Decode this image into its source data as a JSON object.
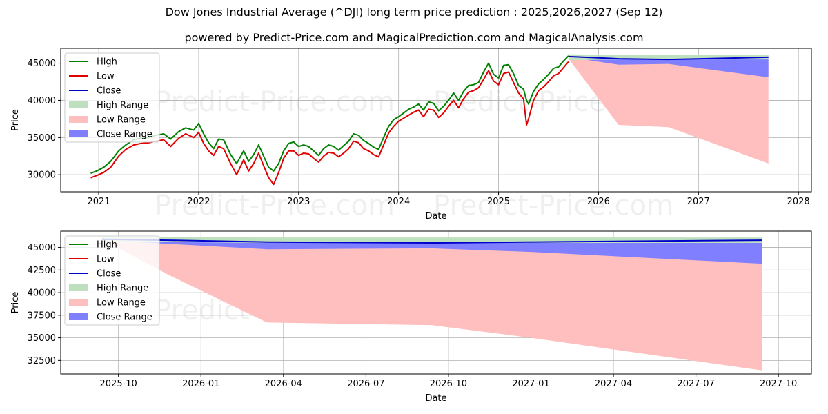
{
  "header": {
    "title": "Dow Jones Industrial Average (^DJI) long term price prediction : 2025,2026,2027 (Sep 12)",
    "subtitle": "powered by Predict-Price.com and MagicalPrediction.com and MagicalAnalysis.com"
  },
  "watermark": "Predict-Price.com",
  "colors": {
    "high": "#008000",
    "low": "#e00000",
    "close": "#0000cc",
    "high_range": "#bfe0bf",
    "low_range": "#ffbfbf",
    "close_range": "#7f7fff",
    "grid": "#b0b0b0"
  },
  "legend": [
    {
      "label": "High",
      "kind": "line",
      "color_key": "high"
    },
    {
      "label": "Low",
      "kind": "line",
      "color_key": "low"
    },
    {
      "label": "Close",
      "kind": "line",
      "color_key": "close"
    },
    {
      "label": "High Range",
      "kind": "patch",
      "color_key": "high_range"
    },
    {
      "label": "Low Range",
      "kind": "patch",
      "color_key": "low_range"
    },
    {
      "label": "Close Range",
      "kind": "patch",
      "color_key": "close_range"
    }
  ],
  "chart_data": [
    {
      "type": "line",
      "name": "top",
      "xlabel": "Date",
      "ylabel": "Price",
      "xlim": [
        2020.62,
        2028.13
      ],
      "ylim": [
        27700,
        47000
      ],
      "xticks": [
        2021,
        2022,
        2023,
        2024,
        2025,
        2026,
        2027,
        2028
      ],
      "xtick_labels": [
        "2021",
        "2022",
        "2023",
        "2024",
        "2025",
        "2026",
        "2027",
        "2028"
      ],
      "yticks": [
        30000,
        35000,
        40000,
        45000
      ],
      "ytick_labels": [
        "30000",
        "35000",
        "40000",
        "45000"
      ],
      "grid": true,
      "legend_position": "upper-left",
      "history": {
        "x": [
          2020.92,
          2020.98,
          2021.05,
          2021.12,
          2021.2,
          2021.27,
          2021.35,
          2021.42,
          2021.5,
          2021.57,
          2021.65,
          2021.72,
          2021.8,
          2021.87,
          2021.95,
          2022.0,
          2022.05,
          2022.1,
          2022.15,
          2022.2,
          2022.25,
          2022.32,
          2022.38,
          2022.45,
          2022.5,
          2022.55,
          2022.6,
          2022.65,
          2022.7,
          2022.75,
          2022.8,
          2022.85,
          2022.9,
          2022.95,
          2023.0,
          2023.05,
          2023.1,
          2023.15,
          2023.2,
          2023.25,
          2023.3,
          2023.35,
          2023.4,
          2023.45,
          2023.5,
          2023.55,
          2023.6,
          2023.65,
          2023.7,
          2023.75,
          2023.8,
          2023.85,
          2023.9,
          2023.95,
          2024.0,
          2024.05,
          2024.1,
          2024.15,
          2024.2,
          2024.25,
          2024.3,
          2024.35,
          2024.4,
          2024.45,
          2024.5,
          2024.55,
          2024.6,
          2024.65,
          2024.7,
          2024.75,
          2024.8,
          2024.85,
          2024.9,
          2024.95,
          2025.0,
          2025.05,
          2025.1,
          2025.15,
          2025.2,
          2025.25,
          2025.28,
          2025.3,
          2025.35,
          2025.4,
          2025.45,
          2025.5,
          2025.55,
          2025.6,
          2025.65,
          2025.7
        ],
        "high": [
          30200,
          30500,
          31000,
          31800,
          33200,
          34000,
          34700,
          34900,
          35000,
          35300,
          35500,
          34800,
          35800,
          36300,
          36000,
          36900,
          35500,
          34300,
          33500,
          34800,
          34700,
          32700,
          31500,
          33200,
          31800,
          32700,
          34000,
          32500,
          31000,
          30500,
          31500,
          33200,
          34200,
          34400,
          33800,
          34000,
          33800,
          33200,
          32600,
          33500,
          34000,
          33800,
          33300,
          33900,
          34500,
          35500,
          35300,
          34600,
          34200,
          33700,
          33400,
          35000,
          36500,
          37400,
          37800,
          38300,
          38800,
          39100,
          39500,
          38700,
          39800,
          39600,
          38600,
          39200,
          40000,
          41000,
          40000,
          41200,
          42000,
          42100,
          42400,
          43800,
          45000,
          43500,
          43000,
          44700,
          44800,
          43600,
          42000,
          41500,
          40000,
          39500,
          41200,
          42200,
          42800,
          43500,
          44300,
          44500,
          45300,
          46000
        ],
        "low": [
          29600,
          29900,
          30300,
          31000,
          32500,
          33400,
          34000,
          34200,
          34300,
          34500,
          34700,
          33800,
          34900,
          35500,
          35000,
          35700,
          34200,
          33200,
          32600,
          33800,
          33500,
          31500,
          30000,
          32000,
          30500,
          31500,
          32900,
          31200,
          29600,
          28700,
          30300,
          32200,
          33200,
          33200,
          32600,
          32900,
          32800,
          32200,
          31700,
          32500,
          33000,
          32900,
          32400,
          32900,
          33500,
          34500,
          34300,
          33500,
          33200,
          32700,
          32400,
          34000,
          35600,
          36500,
          37200,
          37600,
          38000,
          38400,
          38700,
          37800,
          38800,
          38700,
          37700,
          38300,
          39200,
          40000,
          39000,
          40200,
          41100,
          41300,
          41700,
          42800,
          44000,
          42600,
          42100,
          43600,
          43800,
          42400,
          41000,
          40200,
          36700,
          37500,
          40000,
          41300,
          41800,
          42500,
          43300,
          43600,
          44400,
          45200
        ],
        "close": [
          29900,
          30200,
          30700,
          31400,
          32900,
          33700,
          34400,
          34600,
          34700,
          34900,
          35100,
          34300,
          35400,
          35900,
          35500,
          36300,
          34900,
          33800,
          33100,
          34300,
          34100,
          32100,
          30800,
          32600,
          31100,
          32100,
          33400,
          31900,
          30300,
          29600,
          30900,
          32700,
          33700,
          33800,
          33200,
          33400,
          33300,
          32700,
          32100,
          33000,
          33500,
          33300,
          32900,
          33400,
          34000,
          35000,
          34800,
          34000,
          33700,
          33200,
          32900,
          34500,
          36000,
          37000,
          37500,
          37900,
          38400,
          38700,
          39100,
          38200,
          39300,
          39100,
          38100,
          38700,
          39600,
          40500,
          39500,
          40700,
          41500,
          41700,
          42000,
          43300,
          44500,
          43000,
          42500,
          44100,
          44300,
          43000,
          41500,
          40800,
          38300,
          38500,
          40600,
          41700,
          42300,
          43000,
          43800,
          44000,
          44800,
          45600
        ]
      },
      "forecast": {
        "x": [
          2025.7,
          2026.2,
          2026.7,
          2027.7
        ],
        "high_range": {
          "upper": [
            46200,
            46100,
            46100,
            46100
          ],
          "lower": [
            45400,
            45500,
            45500,
            45500
          ]
        },
        "low_range": {
          "upper": [
            45800,
            45000,
            45100,
            45000
          ],
          "lower": [
            45600,
            36700,
            36400,
            31500
          ]
        },
        "close_range": {
          "upper": [
            46000,
            45800,
            45600,
            45800
          ],
          "lower": [
            45800,
            44800,
            44900,
            43100
          ]
        },
        "close": [
          45900,
          45600,
          45500,
          45800
        ]
      }
    },
    {
      "type": "line",
      "name": "bottom",
      "xlabel": "Date",
      "ylabel": "Price",
      "xlim": [
        2025.575,
        2027.85
      ],
      "ylim": [
        31000,
        46800
      ],
      "xticks": [
        2025.75,
        2026.0,
        2026.25,
        2026.5,
        2026.75,
        2027.0,
        2027.25,
        2027.5,
        2027.75
      ],
      "xtick_labels": [
        "2025-10",
        "2026-01",
        "2026-04",
        "2026-07",
        "2026-10",
        "2027-01",
        "2027-04",
        "2027-07",
        "2027-10"
      ],
      "yticks": [
        32500,
        35000,
        37500,
        40000,
        42500,
        45000
      ],
      "ytick_labels": [
        "32500",
        "35000",
        "37500",
        "40000",
        "42500",
        "45000"
      ],
      "grid": true,
      "legend_position": "upper-left",
      "forecast": {
        "x": [
          2025.7,
          2025.9,
          2026.2,
          2026.7,
          2027.0,
          2027.7
        ],
        "high_range": {
          "upper": [
            46200,
            46150,
            46100,
            46100,
            46100,
            46100
          ],
          "lower": [
            45700,
            45600,
            45500,
            45500,
            45500,
            45500
          ]
        },
        "low_range": {
          "upper": [
            46000,
            45500,
            45200,
            45100,
            44700,
            44000
          ],
          "lower": [
            45900,
            42000,
            36700,
            36400,
            35000,
            31400
          ]
        },
        "close_range": {
          "upper": [
            46000,
            45900,
            45600,
            45600,
            45700,
            45800
          ],
          "lower": [
            45800,
            45400,
            44800,
            44900,
            44500,
            43200
          ]
        },
        "close": [
          45900,
          45800,
          45600,
          45500,
          45600,
          45800
        ]
      }
    }
  ]
}
